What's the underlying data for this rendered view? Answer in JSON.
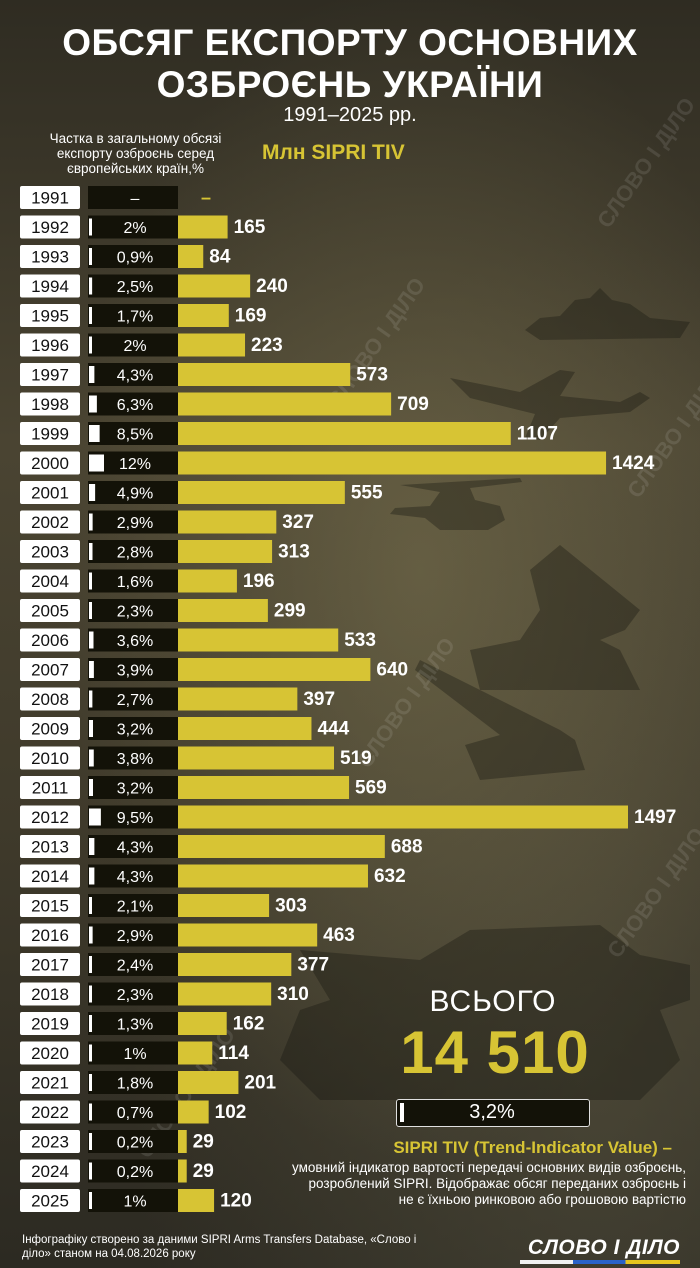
{
  "title_line1": "ОБСЯГ ЕКСПОРТУ ОСНОВНИХ",
  "title_line2": "ОЗБРОЄНЬ УКРАЇНИ",
  "period": "1991–2025 рр.",
  "share_header": "Частка в загальному обсязі експорту озброєнь серед європейських країн,%",
  "unit_header": "Млн SIPRI TIV",
  "total_label": "ВСЬОГО",
  "total_value": "14 510",
  "total_share": "3,2%",
  "total_share_fraction": 0.032,
  "note_title": "SIPRI TIV (Trend-Indicator Value) –",
  "note_text": "умовний індикатор вартості передачі основних видів озброєнь, розроблений SIPRI. Відображає обсяг переданих озброєнь і не є їхньою ринковою або грошовою вартістю",
  "footer": "Інфографіку створено за даними  SIPRI Arms Transfers Database, «Слово і діло» станом на 04.08.2026 року",
  "logo_text": "СЛОВО І ДІЛО",
  "watermark": "СЛОВО І ДІЛО",
  "colors": {
    "accent": "#d7c434",
    "bar": "#d7c434",
    "share_box": "#131208",
    "year_box": "#ffffff",
    "text": "#ffffff"
  },
  "chart_data": {
    "type": "bar",
    "orientation": "horizontal",
    "categories": [
      "1991",
      "1992",
      "1993",
      "1994",
      "1995",
      "1996",
      "1997",
      "1998",
      "1999",
      "2000",
      "2001",
      "2002",
      "2003",
      "2004",
      "2005",
      "2006",
      "2007",
      "2008",
      "2009",
      "2010",
      "2011",
      "2012",
      "2013",
      "2014",
      "2015",
      "2016",
      "2017",
      "2018",
      "2019",
      "2020",
      "2021",
      "2022",
      "2023",
      "2024",
      "2025"
    ],
    "values": [
      null,
      165,
      84,
      240,
      169,
      223,
      573,
      709,
      1107,
      1424,
      555,
      327,
      313,
      196,
      299,
      533,
      640,
      397,
      444,
      519,
      569,
      1497,
      688,
      632,
      303,
      463,
      377,
      310,
      162,
      114,
      201,
      102,
      29,
      29,
      120
    ],
    "value_labels": [
      "–",
      "165",
      "84",
      "240",
      "169",
      "223",
      "573",
      "709",
      "1107",
      "1424",
      "555",
      "327",
      "313",
      "196",
      "299",
      "533",
      "640",
      "397",
      "444",
      "519",
      "569",
      "1497",
      "688",
      "632",
      "303",
      "463",
      "377",
      "310",
      "162",
      "114",
      "201",
      "102",
      "29",
      "29",
      "120"
    ],
    "share_labels": [
      "–",
      "2%",
      "0,9%",
      "2,5%",
      "1,7%",
      "2%",
      "4,3%",
      "6,3%",
      "8,5%",
      "12%",
      "4,9%",
      "2,9%",
      "2,8%",
      "1,6%",
      "2,3%",
      "3,6%",
      "3,9%",
      "2,7%",
      "3,2%",
      "3,8%",
      "3,2%",
      "9,5%",
      "4,3%",
      "4,3%",
      "2,1%",
      "2,9%",
      "2,4%",
      "2,3%",
      "1,3%",
      "1%",
      "1,8%",
      "0,7%",
      "0,2%",
      "0,2%",
      "1%"
    ],
    "share_percent": [
      0,
      2,
      0.9,
      2.5,
      1.7,
      2,
      4.3,
      6.3,
      8.5,
      12,
      4.9,
      2.9,
      2.8,
      1.6,
      2.3,
      3.6,
      3.9,
      2.7,
      3.2,
      3.8,
      3.2,
      9.5,
      4.3,
      4.3,
      2.1,
      2.9,
      2.4,
      2.3,
      1.3,
      1,
      1.8,
      0.7,
      0.2,
      0.2,
      1
    ],
    "xlabel": "Млн SIPRI TIV",
    "ylabel": "",
    "xlim": [
      0,
      1497
    ],
    "grid": false,
    "legend": "none"
  }
}
